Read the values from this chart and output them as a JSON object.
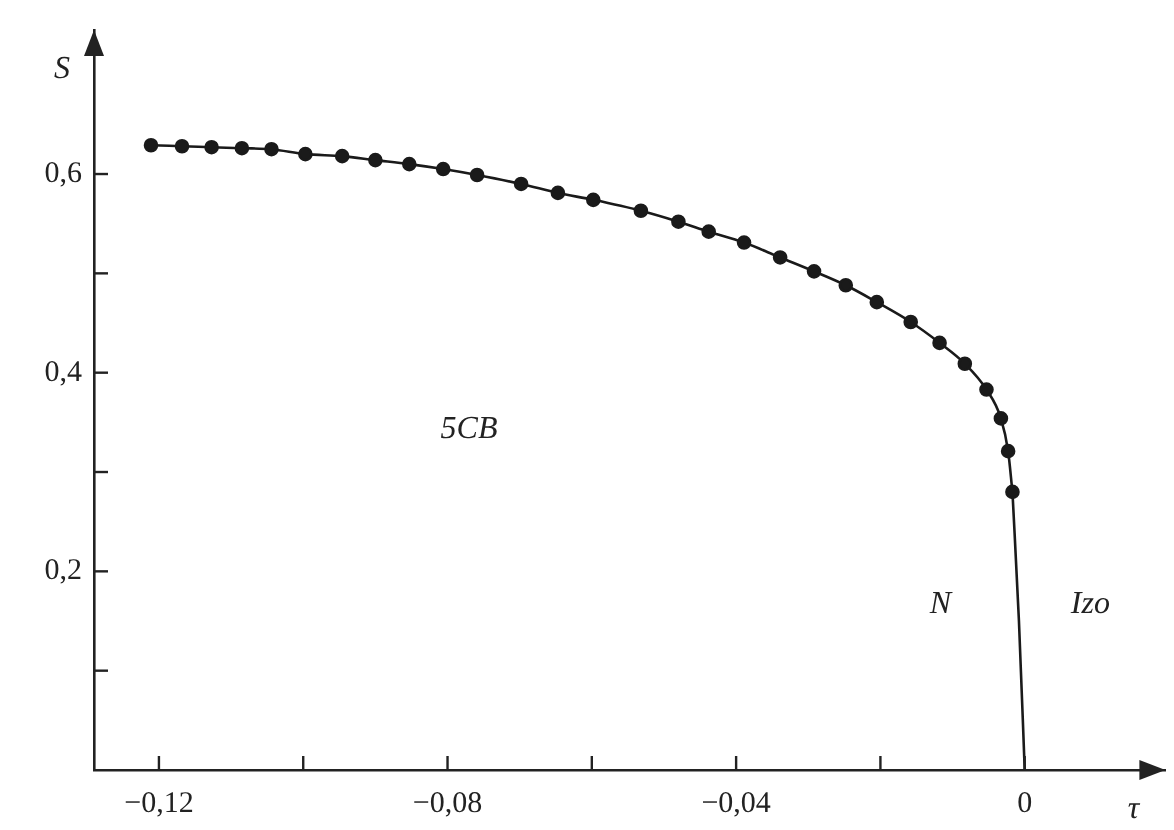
{
  "chart_data": {
    "type": "line",
    "xlabel": "τ",
    "ylabel": "S",
    "xlim": [
      -0.129,
      0.0195
    ],
    "ylim": [
      0,
      0.745
    ],
    "xticks": [
      {
        "value": -0.12,
        "label": "−0,12"
      },
      {
        "value": -0.1,
        "label": null
      },
      {
        "value": -0.08,
        "label": "−0,08"
      },
      {
        "value": -0.06,
        "label": null
      },
      {
        "value": -0.04,
        "label": "−0,04"
      },
      {
        "value": -0.02,
        "label": null
      },
      0
    ],
    "yticks": [
      {
        "value": 0.1,
        "label": null
      },
      {
        "value": 0.2,
        "label": "0,2"
      },
      {
        "value": 0.3,
        "label": null
      },
      {
        "value": 0.4,
        "label": "0,4"
      },
      {
        "value": 0.5,
        "label": null
      },
      {
        "value": 0.6,
        "label": "0,6"
      }
    ],
    "grid": false,
    "legend": false,
    "line_style": "solid",
    "series": [
      {
        "color": "#1a1a1a",
        "marker": "circle",
        "x": [
          -0.1211,
          -0.1168,
          -0.1127,
          -0.1085,
          -0.1044,
          -0.0997,
          -0.0946,
          -0.09,
          -0.0853,
          -0.0806,
          -0.0759,
          -0.0698,
          -0.0647,
          -0.0598,
          -0.0532,
          -0.048,
          -0.0438,
          -0.0389,
          -0.0339,
          -0.0292,
          -0.0248,
          -0.0205,
          -0.0158,
          -0.0118,
          -0.0083,
          -0.0053,
          -0.0033,
          -0.0023,
          -0.0017
        ],
        "values": [
          0.629,
          0.628,
          0.627,
          0.626,
          0.625,
          0.62,
          0.618,
          0.614,
          0.61,
          0.605,
          0.599,
          0.59,
          0.581,
          0.574,
          0.563,
          0.552,
          0.542,
          0.531,
          0.516,
          0.502,
          0.488,
          0.471,
          0.451,
          0.43,
          0.409,
          0.383,
          0.354,
          0.321,
          0.28
        ]
      },
      {
        "color": "#1a1a1a",
        "marker": "none",
        "x": [
          -0.0017,
          -0.0008,
          0
        ],
        "values": [
          0.28,
          0.15,
          0
        ]
      }
    ],
    "annotations": [
      "5CB",
      "N",
      "Izo"
    ]
  }
}
